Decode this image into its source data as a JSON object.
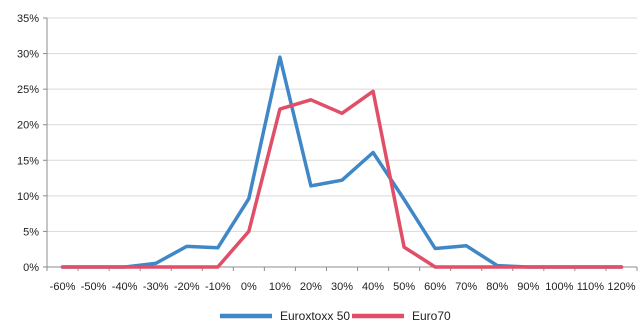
{
  "chart_data": {
    "type": "line",
    "categories": [
      "-60%",
      "-50%",
      "-40%",
      "-30%",
      "-20%",
      "-10%",
      "0%",
      "10%",
      "20%",
      "30%",
      "40%",
      "50%",
      "60%",
      "70%",
      "80%",
      "90%",
      "100%",
      "110%",
      "120%"
    ],
    "yticks": [
      "0%",
      "5%",
      "10%",
      "15%",
      "20%",
      "25%",
      "30%",
      "35%"
    ],
    "ylim": [
      0,
      35
    ],
    "grid": true,
    "legend_position": "bottom",
    "series": [
      {
        "name": "Euroxtoxx 50",
        "color": "#3f87c6",
        "values": [
          0,
          0,
          0,
          0.5,
          2.9,
          2.7,
          9.6,
          29.5,
          11.4,
          12.2,
          16.1,
          9.5,
          2.6,
          3.0,
          0.2,
          0,
          0,
          0,
          0
        ]
      },
      {
        "name": "Euro70",
        "color": "#e04e67",
        "values": [
          0,
          0,
          0,
          0,
          0,
          0,
          5.0,
          22.2,
          23.5,
          21.6,
          24.7,
          2.8,
          0,
          0,
          0,
          0,
          0,
          0,
          0
        ]
      }
    ]
  }
}
